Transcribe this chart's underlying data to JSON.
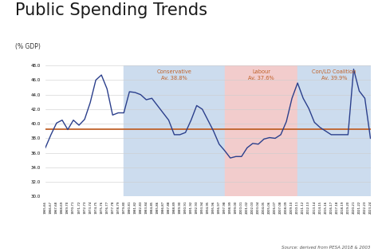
{
  "title": "Public Spending Trends",
  "subtitle": "(% GDP)",
  "source": "Source: derived from PESA 2018 & 2003",
  "ylim": [
    30.0,
    48.0
  ],
  "yticks": [
    30.0,
    32.0,
    34.0,
    36.0,
    38.0,
    40.0,
    42.0,
    44.0,
    46.0,
    48.0
  ],
  "average_line": 39.3,
  "line_color": "#2b3f8c",
  "average_color": "#c0622a",
  "conservative_color": "#ccdcee",
  "labour_color": "#f2cccc",
  "coalition_color": "#ccdcee",
  "label_color": "#c0622a",
  "conservative_label": "Conservative\nAv. 38.8%",
  "labour_label": "Labour\nAv. 37.6%",
  "coalition_label": "Con/LD Coalition\nAv. 39.9%",
  "years": [
    "1965-66",
    "1966-67",
    "1967-68",
    "1968-69",
    "1969-70",
    "1970-71",
    "1971-72",
    "1972-73",
    "1973-74",
    "1974-75",
    "1975-76",
    "1976-77",
    "1977-78",
    "1978-79",
    "1979-80",
    "1980-81",
    "1981-82",
    "1982-83",
    "1983-84",
    "1984-85",
    "1985-86",
    "1986-87",
    "1987-88",
    "1988-89",
    "1989-90",
    "1990-91",
    "1991-92",
    "1992-93",
    "1993-94",
    "1994-95",
    "1995-96",
    "1996-97",
    "1997-98",
    "1998-99",
    "1999-00",
    "2000-01",
    "2001-02",
    "2002-03",
    "2003-04",
    "2004-05",
    "2005-06",
    "2006-07",
    "2007-08",
    "2008-09",
    "2009-10",
    "2010-11",
    "2011-12",
    "2012-13",
    "2013-14",
    "2014-15",
    "2015-16",
    "2016-17",
    "2017-18",
    "2018-19",
    "2019-20",
    "2020-21",
    "2021-22",
    "2022-23",
    "2023-24"
  ],
  "values": [
    36.7,
    38.5,
    40.1,
    40.5,
    39.2,
    40.5,
    39.8,
    40.6,
    42.9,
    46.0,
    46.7,
    44.8,
    41.2,
    41.5,
    41.5,
    44.4,
    44.3,
    44.0,
    43.3,
    43.5,
    42.5,
    41.5,
    40.5,
    38.5,
    38.5,
    38.8,
    40.5,
    42.5,
    42.0,
    40.5,
    39.0,
    37.2,
    36.3,
    35.3,
    35.5,
    35.5,
    36.7,
    37.3,
    37.2,
    37.9,
    38.1,
    38.0,
    38.5,
    40.3,
    43.5,
    45.6,
    43.5,
    42.1,
    40.2,
    39.5,
    39.0,
    38.5,
    38.5,
    38.5,
    38.5,
    47.5,
    44.5,
    43.5,
    38.0
  ],
  "conservative_xrange": [
    14,
    32
  ],
  "labour_xrange": [
    32,
    45
  ],
  "coalition_xrange": [
    45,
    58
  ]
}
